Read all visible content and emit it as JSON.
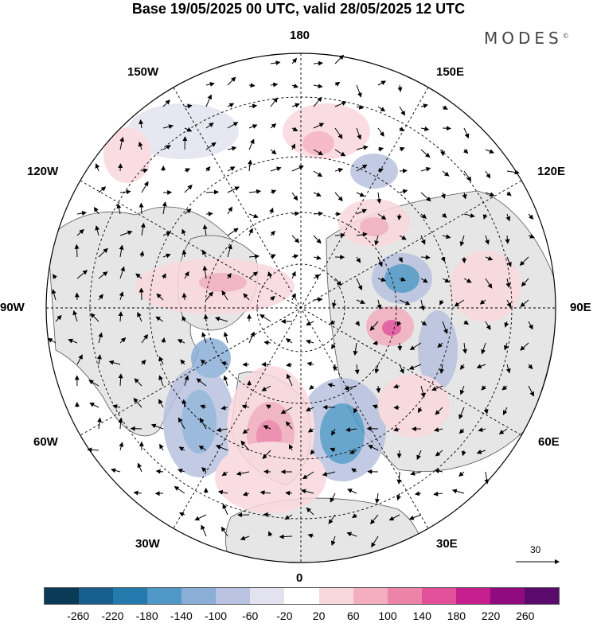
{
  "header": {
    "title": "Base 19/05/2025 00 UTC, valid 28/05/2025 12 UTC"
  },
  "brand": {
    "text": "MODES",
    "mark": "©"
  },
  "longitude_labels": {
    "lon_180": "180",
    "lon_150E": "150E",
    "lon_120E": "120E",
    "lon_90E": "90E",
    "lon_60E": "60E",
    "lon_30E": "30E",
    "lon_0": "0",
    "lon_30W": "30W",
    "lon_60W": "60W",
    "lon_90W": "90W",
    "lon_120W": "120W",
    "lon_150W": "150W"
  },
  "reference_vector": {
    "value": "30"
  },
  "colorbar": {
    "colors": [
      "#0b3a57",
      "#165f8d",
      "#2479ad",
      "#4e97c6",
      "#8aaed6",
      "#b9c2e0",
      "#e3e3ef",
      "#ffffff",
      "#f9d8dd",
      "#f4aebd",
      "#ee83a8",
      "#e2509c",
      "#c51f8e",
      "#8f0b7f",
      "#5a0a6b"
    ],
    "ticks": [
      "-260",
      "-220",
      "-180",
      "-140",
      "-100",
      "-60",
      "-20",
      "20",
      "60",
      "100",
      "140",
      "180",
      "220",
      "260"
    ]
  },
  "anomaly_centers": [
    {
      "sign": "neg",
      "strength": 3
    },
    {
      "sign": "neg",
      "strength": 3
    },
    {
      "sign": "neg",
      "strength": 3
    },
    {
      "sign": "pos",
      "strength": 4
    },
    {
      "sign": "pos",
      "strength": 3
    }
  ]
}
